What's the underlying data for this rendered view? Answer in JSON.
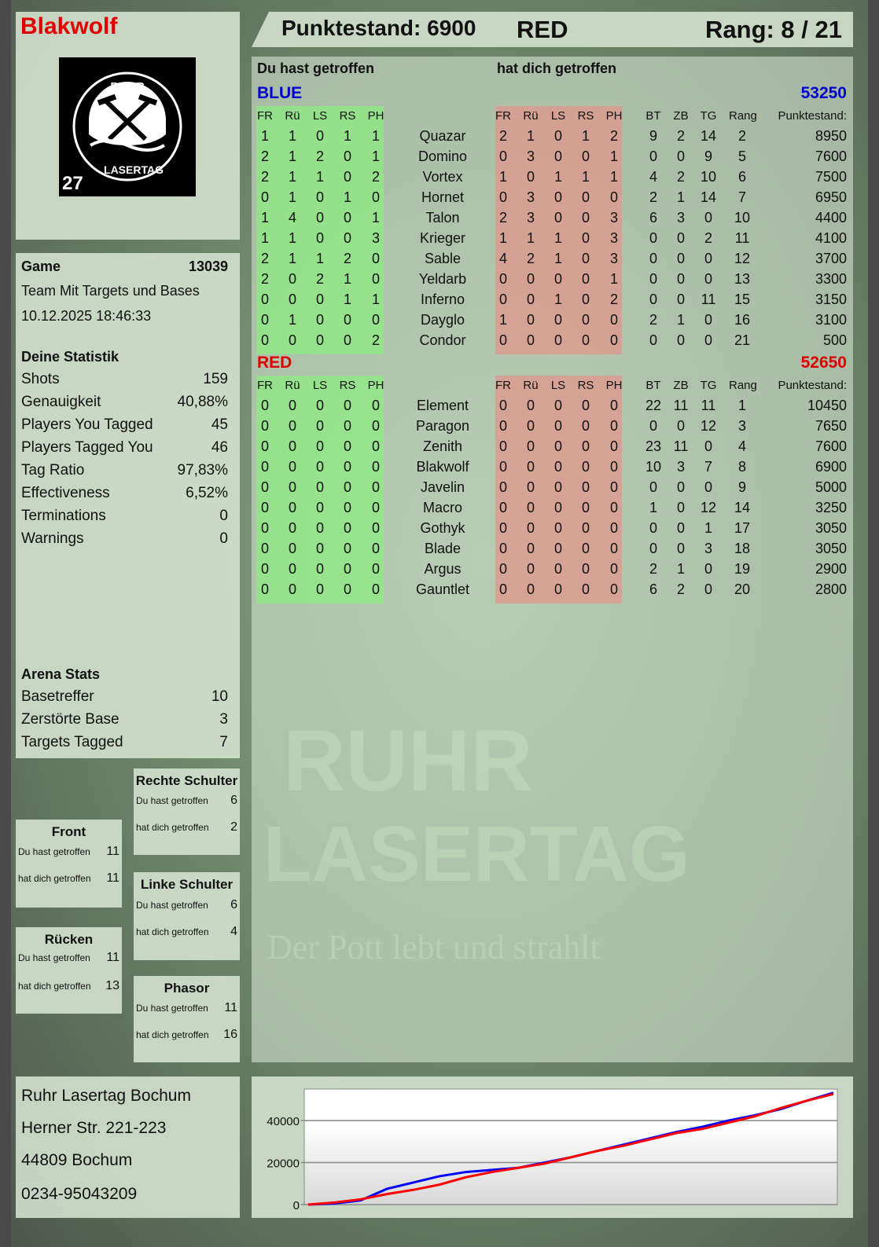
{
  "player": {
    "name": "Blakwolf",
    "logo_number": "27",
    "logo_text": "RUHR LASERTAG"
  },
  "header": {
    "score": "Punktestand: 6900",
    "team": "RED",
    "rank": "Rang: 8 / 21"
  },
  "main": {
    "you_hit": "Du hast getroffen",
    "hit_you": "hat dich getroffen",
    "columns_hit": [
      "FR",
      "Rü",
      "LS",
      "RS",
      "PH"
    ],
    "columns_stats": [
      "BT",
      "ZB",
      "TG",
      "Rang",
      "Punktestand:"
    ],
    "teams": [
      {
        "name": "BLUE",
        "score": "53250",
        "color": "#0000cc",
        "players": [
          {
            "name": "Quazar",
            "hit": [
              1,
              1,
              0,
              1,
              1
            ],
            "got": [
              2,
              1,
              0,
              1,
              2
            ],
            "stats": [
              9,
              2,
              14,
              2,
              8950
            ]
          },
          {
            "name": "Domino",
            "hit": [
              2,
              1,
              2,
              0,
              1
            ],
            "got": [
              0,
              3,
              0,
              0,
              1
            ],
            "stats": [
              0,
              0,
              9,
              5,
              7600
            ]
          },
          {
            "name": "Vortex",
            "hit": [
              2,
              1,
              1,
              0,
              2
            ],
            "got": [
              1,
              0,
              1,
              1,
              1
            ],
            "stats": [
              4,
              2,
              10,
              6,
              7500
            ]
          },
          {
            "name": "Hornet",
            "hit": [
              0,
              1,
              0,
              1,
              0
            ],
            "got": [
              0,
              3,
              0,
              0,
              0
            ],
            "stats": [
              2,
              1,
              14,
              7,
              6950
            ]
          },
          {
            "name": "Talon",
            "hit": [
              1,
              4,
              0,
              0,
              1
            ],
            "got": [
              2,
              3,
              0,
              0,
              3
            ],
            "stats": [
              6,
              3,
              0,
              10,
              4400
            ]
          },
          {
            "name": "Krieger",
            "hit": [
              1,
              1,
              0,
              0,
              3
            ],
            "got": [
              1,
              1,
              1,
              0,
              3
            ],
            "stats": [
              0,
              0,
              2,
              11,
              4100
            ]
          },
          {
            "name": "Sable",
            "hit": [
              2,
              1,
              1,
              2,
              0
            ],
            "got": [
              4,
              2,
              1,
              0,
              3
            ],
            "stats": [
              0,
              0,
              0,
              12,
              3700
            ]
          },
          {
            "name": "Yeldarb",
            "hit": [
              2,
              0,
              2,
              1,
              0
            ],
            "got": [
              0,
              0,
              0,
              0,
              1
            ],
            "stats": [
              0,
              0,
              0,
              13,
              3300
            ]
          },
          {
            "name": "Inferno",
            "hit": [
              0,
              0,
              0,
              1,
              1
            ],
            "got": [
              0,
              0,
              1,
              0,
              2
            ],
            "stats": [
              0,
              0,
              11,
              15,
              3150
            ]
          },
          {
            "name": "Dayglo",
            "hit": [
              0,
              1,
              0,
              0,
              0
            ],
            "got": [
              1,
              0,
              0,
              0,
              0
            ],
            "stats": [
              2,
              1,
              0,
              16,
              3100
            ]
          },
          {
            "name": "Condor",
            "hit": [
              0,
              0,
              0,
              0,
              2
            ],
            "got": [
              0,
              0,
              0,
              0,
              0
            ],
            "stats": [
              0,
              0,
              0,
              21,
              500
            ]
          }
        ]
      },
      {
        "name": "RED",
        "score": "52650",
        "color": "#dd0000",
        "players": [
          {
            "name": "Element",
            "hit": [
              0,
              0,
              0,
              0,
              0
            ],
            "got": [
              0,
              0,
              0,
              0,
              0
            ],
            "stats": [
              22,
              11,
              11,
              1,
              10450
            ]
          },
          {
            "name": "Paragon",
            "hit": [
              0,
              0,
              0,
              0,
              0
            ],
            "got": [
              0,
              0,
              0,
              0,
              0
            ],
            "stats": [
              0,
              0,
              12,
              3,
              7650
            ]
          },
          {
            "name": "Zenith",
            "hit": [
              0,
              0,
              0,
              0,
              0
            ],
            "got": [
              0,
              0,
              0,
              0,
              0
            ],
            "stats": [
              23,
              11,
              0,
              4,
              7600
            ]
          },
          {
            "name": "Blakwolf",
            "hit": [
              0,
              0,
              0,
              0,
              0
            ],
            "got": [
              0,
              0,
              0,
              0,
              0
            ],
            "stats": [
              10,
              3,
              7,
              8,
              6900
            ]
          },
          {
            "name": "Javelin",
            "hit": [
              0,
              0,
              0,
              0,
              0
            ],
            "got": [
              0,
              0,
              0,
              0,
              0
            ],
            "stats": [
              0,
              0,
              0,
              9,
              5000
            ]
          },
          {
            "name": "Macro",
            "hit": [
              0,
              0,
              0,
              0,
              0
            ],
            "got": [
              0,
              0,
              0,
              0,
              0
            ],
            "stats": [
              1,
              0,
              12,
              14,
              3250
            ]
          },
          {
            "name": "Gothyk",
            "hit": [
              0,
              0,
              0,
              0,
              0
            ],
            "got": [
              0,
              0,
              0,
              0,
              0
            ],
            "stats": [
              0,
              0,
              1,
              17,
              3050
            ]
          },
          {
            "name": "Blade",
            "hit": [
              0,
              0,
              0,
              0,
              0
            ],
            "got": [
              0,
              0,
              0,
              0,
              0
            ],
            "stats": [
              0,
              0,
              3,
              18,
              3050
            ]
          },
          {
            "name": "Argus",
            "hit": [
              0,
              0,
              0,
              0,
              0
            ],
            "got": [
              0,
              0,
              0,
              0,
              0
            ],
            "stats": [
              2,
              1,
              0,
              19,
              2900
            ]
          },
          {
            "name": "Gauntlet",
            "hit": [
              0,
              0,
              0,
              0,
              0
            ],
            "got": [
              0,
              0,
              0,
              0,
              0
            ],
            "stats": [
              6,
              2,
              0,
              20,
              2800
            ]
          }
        ]
      }
    ]
  },
  "game": {
    "label": "Game",
    "number": "13039",
    "mode": "Team Mit Targets und Bases",
    "datetime": "10.12.2025 18:46:33"
  },
  "stats": {
    "title": "Deine Statistik",
    "rows": [
      {
        "label": "Shots",
        "value": "159"
      },
      {
        "label": "Genauigkeit",
        "value": "40,88%"
      },
      {
        "label": "Players You Tagged",
        "value": "45"
      },
      {
        "label": "Players Tagged You",
        "value": "46"
      },
      {
        "label": "Tag Ratio",
        "value": "97,83%"
      },
      {
        "label": "Effectiveness",
        "value": "6,52%"
      },
      {
        "label": "Terminations",
        "value": "0"
      },
      {
        "label": "Warnings",
        "value": "0"
      }
    ]
  },
  "arena": {
    "title": "Arena Stats",
    "rows": [
      {
        "label": "Basetreffer",
        "value": "10"
      },
      {
        "label": "Zerstörte Base",
        "value": "3"
      },
      {
        "label": "Targets Tagged",
        "value": "7"
      }
    ]
  },
  "zones": {
    "front": {
      "title": "Front",
      "you_hit": "Du hast getroffen",
      "you_hit_value": "11",
      "hit_you": "hat dich getroffen",
      "hit_you_value": "11"
    },
    "back": {
      "title": "Rücken",
      "you_hit": "Du hast getroffen",
      "you_hit_value": "11",
      "hit_you": "hat dich getroffen",
      "hit_you_value": "13"
    },
    "right_shoulder": {
      "title": "Rechte Schulter",
      "you_hit": "Du hast getroffen",
      "you_hit_value": "6",
      "hit_you": "hat dich getroffen",
      "hit_you_value": "2"
    },
    "left_shoulder": {
      "title": "Linke Schulter",
      "you_hit": "Du hast getroffen",
      "you_hit_value": "6",
      "hit_you": "hat dich getroffen",
      "hit_you_value": "4"
    },
    "phasor": {
      "title": "Phasor",
      "you_hit": "Du hast getroffen",
      "you_hit_value": "11",
      "hit_you": "hat dich getroffen",
      "hit_you_value": "16"
    }
  },
  "address": [
    "Ruhr Lasertag Bochum",
    "Herner Str. 221-223",
    "44809 Bochum",
    "0234-95043209"
  ],
  "watermark": {
    "line1": "RUHR",
    "line2": "LASERTAG",
    "slogan": "Der Pott lebt und strahlt"
  },
  "chart_data": {
    "type": "line",
    "ylim": [
      0,
      55000
    ],
    "yticks": [
      "0",
      "20000",
      "40000"
    ],
    "grid": true,
    "x": [
      0,
      1,
      2,
      3,
      4,
      5,
      6,
      7,
      8,
      9,
      10,
      11,
      12,
      13,
      14,
      15,
      16,
      17,
      18,
      19,
      20
    ],
    "series": [
      {
        "color": "#0000ff",
        "values": [
          0,
          500,
          2000,
          7500,
          10500,
          13500,
          15500,
          16500,
          17500,
          20000,
          22500,
          25500,
          28500,
          31500,
          34500,
          37000,
          40000,
          42500,
          45500,
          49500,
          53250
        ]
      },
      {
        "color": "#ff0000",
        "values": [
          0,
          1000,
          2500,
          5000,
          7000,
          9500,
          13000,
          15500,
          17500,
          19500,
          22500,
          25500,
          28000,
          31000,
          34000,
          36000,
          39000,
          42000,
          46000,
          49500,
          52650
        ]
      }
    ]
  }
}
